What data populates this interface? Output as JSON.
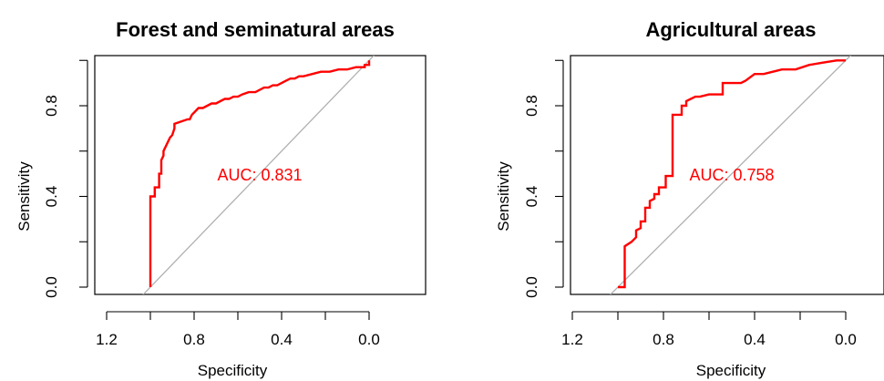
{
  "chart_data": [
    {
      "type": "line",
      "title": "Forest and seminatural areas",
      "xlabel": "Specificity",
      "ylabel": "Sensitivity",
      "xlim": [
        1.2,
        0.0
      ],
      "ylim": [
        0.0,
        1.0
      ],
      "x_reversed": true,
      "x_ticks": [
        "1.2",
        "0.8",
        "0.4",
        "0.0"
      ],
      "y_ticks": [
        "0.0",
        "0.4",
        "0.8"
      ],
      "annotation": "AUC: 0.831",
      "curve_color": "#ff0000",
      "reference_color": "#b0b0b0",
      "series": [
        {
          "x": [
            1.0,
            1.0,
            0.98,
            0.98,
            0.96,
            0.96,
            0.95,
            0.95,
            0.94,
            0.94,
            0.93,
            0.92,
            0.91,
            0.9,
            0.89,
            0.89,
            0.86,
            0.83,
            0.82,
            0.81,
            0.8,
            0.78,
            0.76,
            0.74,
            0.72,
            0.7,
            0.68,
            0.66,
            0.64,
            0.62,
            0.6,
            0.58,
            0.55,
            0.52,
            0.5,
            0.48,
            0.46,
            0.44,
            0.42,
            0.4,
            0.38,
            0.36,
            0.34,
            0.32,
            0.3,
            0.26,
            0.22,
            0.18,
            0.14,
            0.1,
            0.06,
            0.04,
            0.02,
            0.02,
            0.0,
            0.0
          ],
          "y": [
            0.0,
            0.4,
            0.4,
            0.44,
            0.44,
            0.5,
            0.5,
            0.56,
            0.58,
            0.6,
            0.62,
            0.64,
            0.66,
            0.67,
            0.7,
            0.72,
            0.73,
            0.74,
            0.74,
            0.76,
            0.77,
            0.79,
            0.79,
            0.8,
            0.81,
            0.81,
            0.82,
            0.83,
            0.83,
            0.84,
            0.84,
            0.85,
            0.86,
            0.86,
            0.87,
            0.88,
            0.88,
            0.89,
            0.89,
            0.9,
            0.91,
            0.92,
            0.92,
            0.93,
            0.93,
            0.94,
            0.95,
            0.95,
            0.96,
            0.96,
            0.97,
            0.97,
            0.97,
            0.98,
            0.98,
            1.0
          ]
        }
      ]
    },
    {
      "type": "line",
      "title": "Agricultural areas",
      "xlabel": "Specificity",
      "ylabel": "Sensitivity",
      "xlim": [
        1.2,
        0.0
      ],
      "ylim": [
        0.0,
        1.0
      ],
      "x_reversed": true,
      "x_ticks": [
        "1.2",
        "0.8",
        "0.4",
        "0.0"
      ],
      "y_ticks": [
        "0.0",
        "0.4",
        "0.8"
      ],
      "annotation": "AUC: 0.758",
      "curve_color": "#ff0000",
      "reference_color": "#b0b0b0",
      "series": [
        {
          "x": [
            1.0,
            0.97,
            0.97,
            0.94,
            0.94,
            0.92,
            0.92,
            0.9,
            0.9,
            0.88,
            0.88,
            0.86,
            0.86,
            0.84,
            0.84,
            0.82,
            0.82,
            0.79,
            0.79,
            0.76,
            0.76,
            0.72,
            0.72,
            0.7,
            0.7,
            0.68,
            0.66,
            0.64,
            0.6,
            0.54,
            0.54,
            0.46,
            0.44,
            0.4,
            0.36,
            0.32,
            0.28,
            0.22,
            0.16,
            0.1,
            0.04,
            0.0
          ],
          "y": [
            0.0,
            0.0,
            0.18,
            0.2,
            0.2,
            0.22,
            0.25,
            0.26,
            0.29,
            0.29,
            0.35,
            0.35,
            0.38,
            0.39,
            0.41,
            0.41,
            0.44,
            0.44,
            0.49,
            0.49,
            0.76,
            0.76,
            0.8,
            0.8,
            0.82,
            0.83,
            0.84,
            0.84,
            0.85,
            0.85,
            0.9,
            0.9,
            0.91,
            0.94,
            0.94,
            0.95,
            0.96,
            0.96,
            0.98,
            0.99,
            1.0,
            1.0
          ]
        }
      ]
    }
  ]
}
